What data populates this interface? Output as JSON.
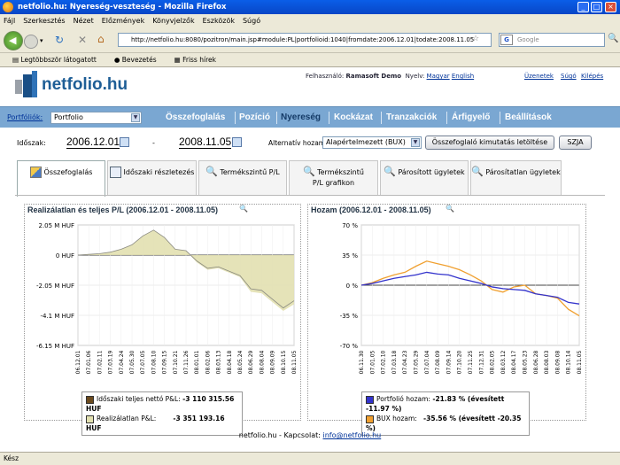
{
  "window": {
    "title": "netfolio.hu: Nyereség-veszteség - Mozilla Firefox"
  },
  "menu": [
    "Fájl",
    "Szerkesztés",
    "Nézet",
    "Előzmények",
    "Könyvjelzők",
    "Eszközök",
    "Súgó"
  ],
  "browser": {
    "url": "http://netfolio.hu:8080/pozitron/main.jsp#module:PL|portfolioid:1040|fromdate:2006.12.01|todate:2008.11.05",
    "search_placeholder": "Google"
  },
  "bookmarks": [
    "Legtöbbször látogatott",
    "Bevezetés",
    "Friss hírek"
  ],
  "header": {
    "logo": "netfolio.hu",
    "user_label": "Felhasználó:",
    "user": "Ramasoft Demo",
    "lang_label": "Nyelv:",
    "lang1": "Magyar",
    "lang2": "English",
    "links": [
      "Üzenetek",
      "Súgó",
      "Kilépés"
    ]
  },
  "nav": {
    "portfolios_label": "Portfóliók:",
    "portfolio": "Portfolio",
    "items": [
      "Összefoglalás",
      "Pozíció",
      "Nyereség",
      "Kockázat",
      "Tranzakciók",
      "Árfigyelő",
      "Beállítások"
    ]
  },
  "period": {
    "label": "Időszak:",
    "from": "2006.12.01",
    "dash": "-",
    "to": "2008.11.05",
    "alt_label": "Alternatív hozam:",
    "alt_value": "Alapértelmezett (BUX)",
    "download_btn": "Összefoglaló kimutatás letöltése",
    "szja_btn": "SZJA"
  },
  "tabs": [
    {
      "label": "Összefoglalás"
    },
    {
      "label": "Időszaki részletezés"
    },
    {
      "label": "Termékszintű P/L"
    },
    {
      "label": "Termékszintű",
      "label2": "P/L grafikon"
    },
    {
      "label": "Párosított ügyletek"
    },
    {
      "label": "Párosítatlan ügyletek"
    }
  ],
  "chart_data": [
    {
      "type": "area",
      "title": "Realizálatlan és teljes P/L (2006.12.01 - 2008.11.05)",
      "yticks": [
        "2.05 M HUF",
        "0 HUF",
        "-2.05 M HUF",
        "-4.1 M HUF",
        "-6.15 M HUF"
      ],
      "ylim": [
        -6.15,
        2.05
      ],
      "x": [
        "2006.12.01",
        "2007.01.06",
        "2007.02.11",
        "2007.03.19",
        "2007.04.24",
        "2007.05.30",
        "2007.07.05",
        "2007.08.10",
        "2007.09.15",
        "2007.10.21",
        "2007.11.26",
        "2008.01.01",
        "2008.02.06",
        "2008.03.13",
        "2008.04.18",
        "2008.05.24",
        "2008.06.29",
        "2008.08.04",
        "2008.09.09",
        "2008.10.15",
        "2008.11.05"
      ],
      "series": [
        {
          "name": "Időszaki teljes nettó P&L:",
          "value": "-3 110 315.56 HUF",
          "color": "#6b4a1e",
          "values": [
            0,
            0.05,
            0.1,
            0.2,
            0.4,
            0.7,
            1.3,
            1.7,
            1.2,
            0.4,
            0.3,
            -0.4,
            -0.9,
            -0.8,
            -1.1,
            -1.4,
            -2.3,
            -2.4,
            -3.0,
            -3.6,
            -3.11
          ]
        },
        {
          "name": "Realizálatlan P&L:",
          "value": "-3 351 193.16 HUF",
          "color": "#e2e0b0",
          "values": [
            0,
            0.05,
            0.1,
            0.2,
            0.4,
            0.7,
            1.3,
            1.7,
            1.2,
            0.4,
            0.3,
            -0.5,
            -1.0,
            -0.9,
            -1.2,
            -1.5,
            -2.5,
            -2.6,
            -3.2,
            -3.8,
            -3.35
          ]
        }
      ]
    },
    {
      "type": "line",
      "title": "Hozam (2006.12.01 - 2008.11.05)",
      "yticks": [
        "70 %",
        "35 %",
        "0 %",
        "-35 %",
        "-70 %"
      ],
      "ylim": [
        -70,
        70
      ],
      "x": [
        "2006.11.30",
        "2007.01.05",
        "2007.02.10",
        "2007.03.18",
        "2007.04.23",
        "2007.05.29",
        "2007.07.04",
        "2007.08.09",
        "2007.09.14",
        "2007.10.20",
        "2007.11.25",
        "2007.12.31",
        "2008.02.05",
        "2008.03.12",
        "2008.04.17",
        "2008.05.23",
        "2008.06.28",
        "2008.08.03",
        "2008.09.08",
        "2008.10.14",
        "2008.11.05"
      ],
      "series": [
        {
          "name": "Portfolió hozam:",
          "value": "-21.83 % (évesített -11.97 %)",
          "color": "#3333cc",
          "values": [
            0,
            2,
            5,
            8,
            10,
            12,
            15,
            13,
            12,
            8,
            5,
            2,
            -2,
            -4,
            -5,
            -6,
            -10,
            -12,
            -14,
            -20,
            -21.8
          ]
        },
        {
          "name": "BUX hozam:",
          "value": "-35.56 % (évesített -20.35 %)",
          "color": "#f0a030",
          "values": [
            0,
            3,
            8,
            12,
            15,
            22,
            28,
            25,
            22,
            18,
            12,
            5,
            -5,
            -8,
            -2,
            0,
            -10,
            -12,
            -15,
            -28,
            -35.6
          ]
        }
      ]
    }
  ],
  "footer": {
    "text": "netfolio.hu - Kapcsolat:",
    "email": "info@netfolio.hu"
  },
  "status": "Kész"
}
